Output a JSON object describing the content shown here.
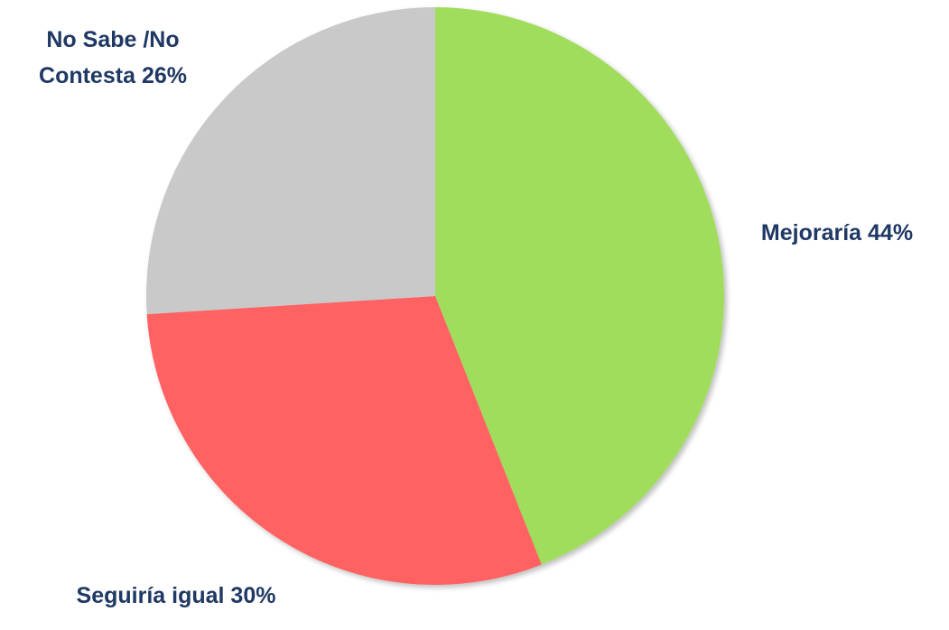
{
  "chart_data": {
    "type": "pie",
    "categories": [
      "Mejoraría",
      "Seguiría igual",
      "No Sabe /No Contesta"
    ],
    "values": [
      44,
      30,
      26
    ],
    "value_labels": [
      "44%",
      "30%",
      "26%"
    ],
    "colors": [
      "#a0dd5b",
      "#ff6262",
      "#c9c9c9"
    ]
  }
}
